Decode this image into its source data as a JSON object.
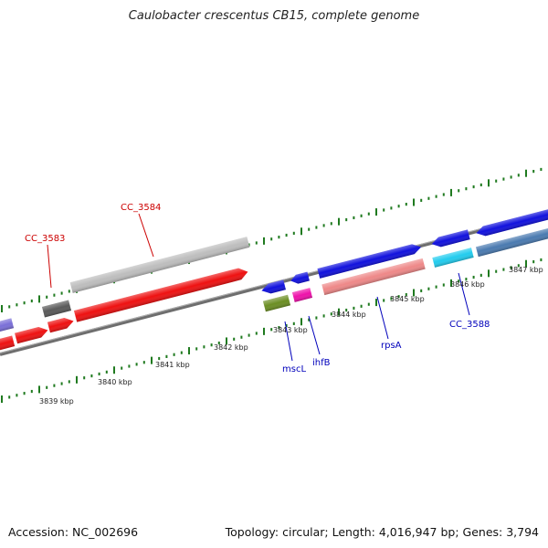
{
  "title": "Caulobacter crescentus CB15, complete genome",
  "footer": {
    "accession": "Accession: NC_002696",
    "summary": "Topology: circular; Length: 4,016,947 bp; Genes: 3,794"
  },
  "kbp_labels": [
    "3839 kbp",
    "3840 kbp",
    "3841 kbp",
    "3842 kbp",
    "3843 kbp",
    "3844 kbp",
    "3845 kbp",
    "3846 kbp",
    "3847 kbp"
  ],
  "gene_labels": [
    "CC_3583",
    "CC_3584",
    "mscL",
    "ihfB",
    "rpsA",
    "CC_3588"
  ],
  "colors": {
    "backbone": "#7a7a7a",
    "tick": "#1f7a1f",
    "red_label": "#cc0000",
    "blue_label": "#0000bb",
    "red_gene": "#ee1111",
    "blue_gene": "#1111dd",
    "pseudo_gray": "#bdbdbd",
    "dark_gray": "#5a5a5a",
    "purple": "#7a6fd8",
    "olive": "#6b8e23",
    "magenta": "#ee11aa",
    "salmon": "#ee8888",
    "cyan": "#22ccee",
    "steel": "#4a7ab0"
  }
}
